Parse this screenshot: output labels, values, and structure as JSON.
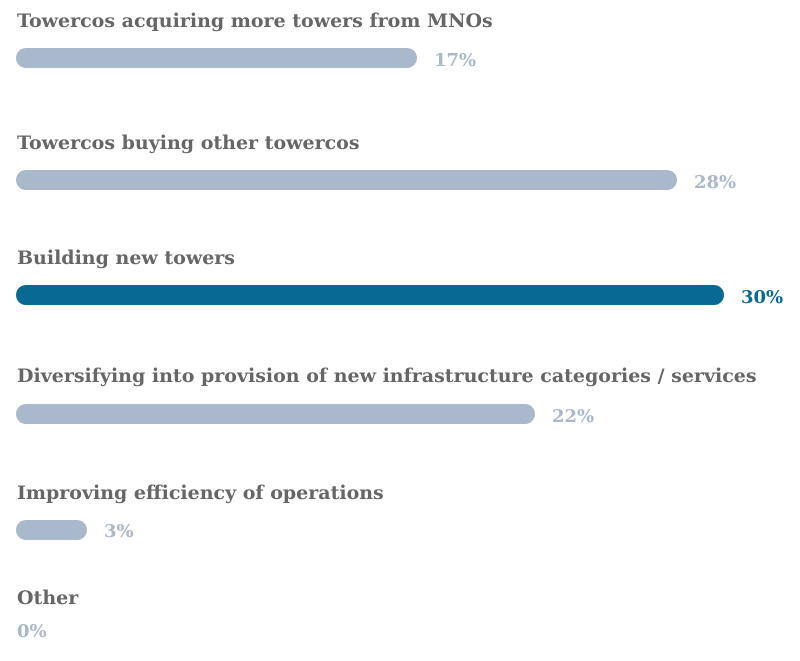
{
  "chart_data": {
    "type": "bar",
    "orientation": "horizontal",
    "title": "",
    "xlabel": "",
    "ylabel": "",
    "xlim": [
      0,
      30
    ],
    "grid": false,
    "categories": [
      "Towercos acquiring more towers from MNOs",
      "Towercos buying other towercos",
      "Building new towers",
      "Diversifying into provision of new infrastructure categories / services",
      "Improving efficiency of operations",
      "Other"
    ],
    "values": [
      17,
      28,
      30,
      22,
      3,
      0
    ],
    "value_labels": [
      "17%",
      "28%",
      "30%",
      "22%",
      "3%",
      "0%"
    ],
    "highlight_index": 2,
    "colors": {
      "bar": "#a9b8cb",
      "highlight": "#086a93",
      "label": "#666666"
    }
  }
}
